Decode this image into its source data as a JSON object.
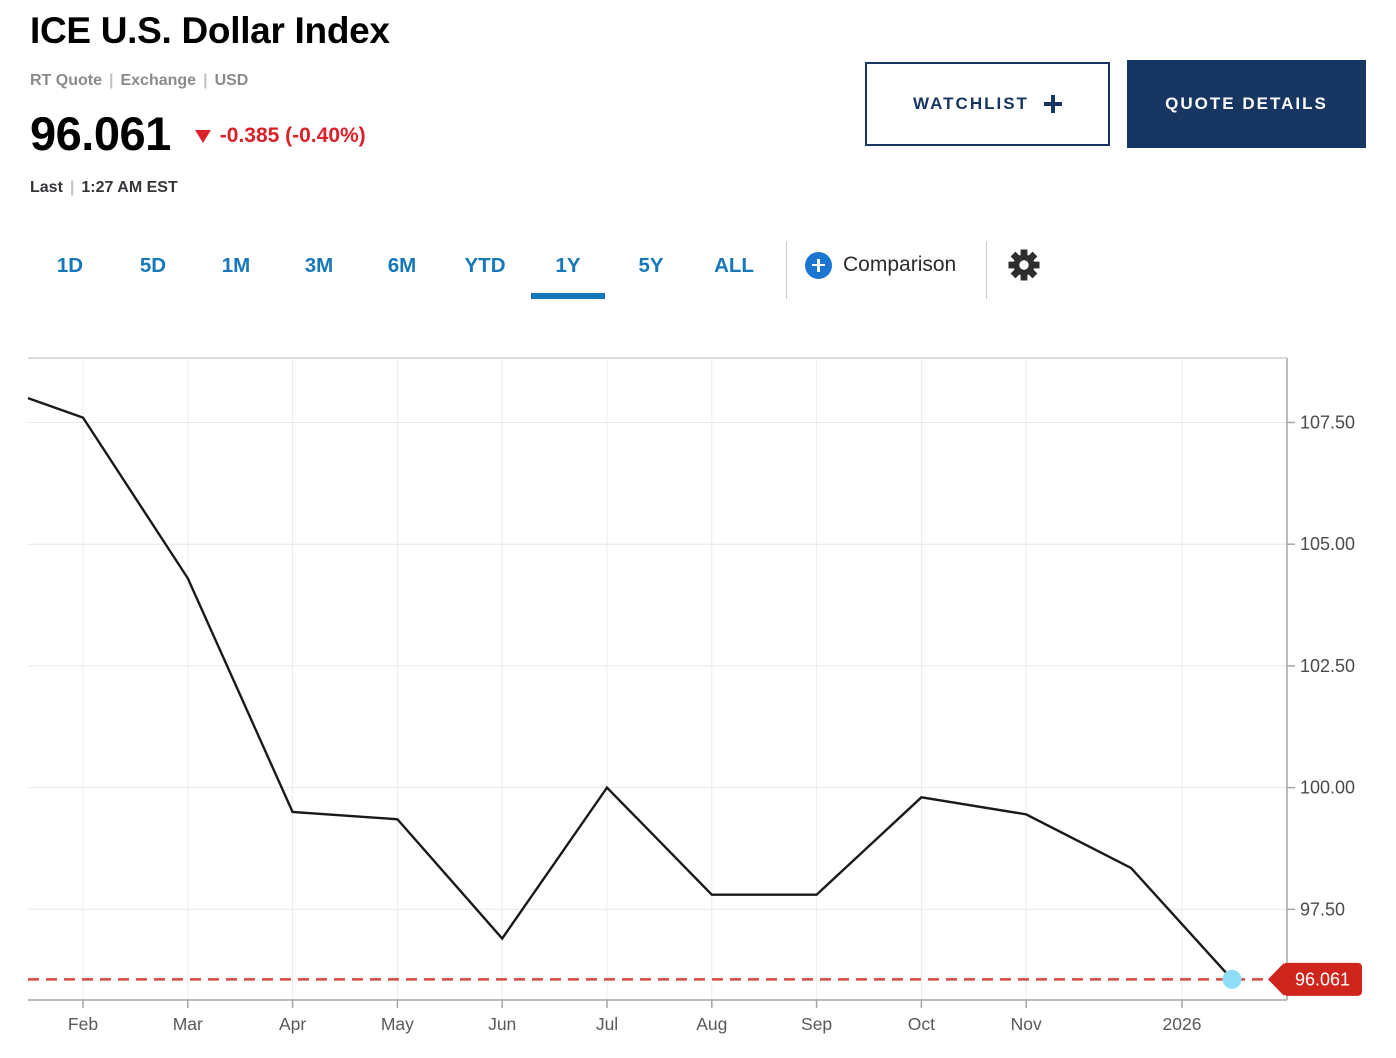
{
  "header": {
    "title": "ICE U.S. Dollar Index",
    "quote_meta": [
      "RT Quote",
      "Exchange",
      "USD"
    ],
    "separator": "|",
    "price": "96.061",
    "change": "-0.385 (-0.40%)",
    "change_direction": "down",
    "last_label": "Last",
    "last_time": "1:27 AM EST",
    "watchlist_label": "WATCHLIST",
    "quote_details_label": "QUOTE DETAILS"
  },
  "toolbar": {
    "ranges": [
      "1D",
      "5D",
      "1M",
      "3M",
      "6M",
      "YTD",
      "1Y",
      "5Y",
      "ALL"
    ],
    "active_range": "1Y",
    "comparison_label": "Comparison"
  },
  "icons": {
    "comparison": "plus-circle-icon",
    "settings": "gear-icon",
    "change": "down-triangle-icon"
  },
  "colors": {
    "accent_blue": "#1678b8",
    "navy": "#173762",
    "negative_red": "#da2128",
    "flag_red": "#d0251c",
    "dashed_red": "#d8483e",
    "marker_cyan": "#8edff5",
    "line_black": "#191919"
  },
  "chart_data": {
    "type": "line",
    "title": "ICE U.S. Dollar Index — 1Y",
    "x_tick_labels": [
      "Feb",
      "Mar",
      "Apr",
      "May",
      "Jun",
      "Jul",
      "Aug",
      "Sep",
      "Oct",
      "Nov",
      "2026"
    ],
    "y_ticks": [
      107.5,
      105.0,
      102.5,
      100.0,
      97.5
    ],
    "y_tick_labels": [
      "107.50",
      "105.00",
      "102.50",
      "100.00",
      "97.50"
    ],
    "ylim": [
      95.6,
      108.9
    ],
    "grid": true,
    "legend": false,
    "points": [
      {
        "label": "start (late Jan)",
        "value": 108.0
      },
      {
        "label": "Feb",
        "value": 107.6
      },
      {
        "label": "Mar",
        "value": 104.3
      },
      {
        "label": "Apr",
        "value": 99.5
      },
      {
        "label": "May",
        "value": 99.35
      },
      {
        "label": "Jun",
        "value": 96.9
      },
      {
        "label": "Jul",
        "value": 100.0
      },
      {
        "label": "Aug",
        "value": 97.8
      },
      {
        "label": "Sep",
        "value": 97.8
      },
      {
        "label": "Oct",
        "value": 99.8
      },
      {
        "label": "Nov",
        "value": 99.45
      },
      {
        "label": "Dec",
        "value": 98.35
      },
      {
        "label": "last (2026)",
        "value": 96.061
      }
    ],
    "last_price": 96.061,
    "last_price_label": "96.061"
  }
}
